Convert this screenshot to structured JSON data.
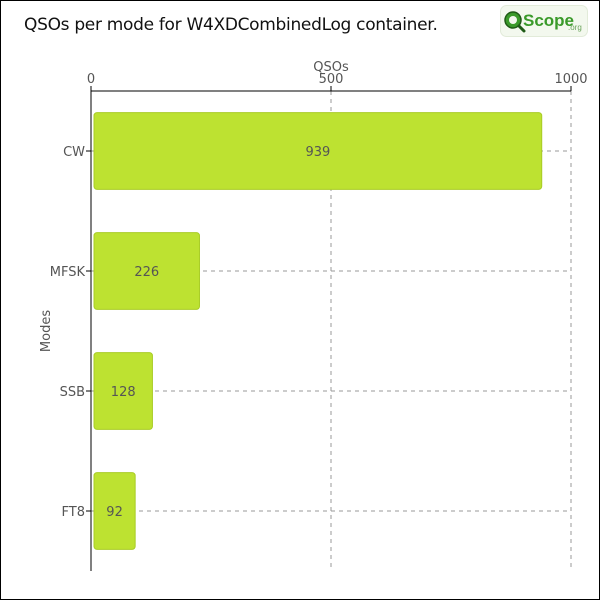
{
  "header": {
    "title": "QSOs per mode for W4XDCombinedLog container.",
    "logo_text": "Scope",
    "logo_suffix": ".org"
  },
  "colors": {
    "bar": "#bde231",
    "bar_edge": "#a9cc25",
    "grid": "#999999",
    "logo_green": "#3a9a2a"
  },
  "chart_data": {
    "type": "bar",
    "orientation": "horizontal",
    "title": "QSOs per mode for W4XDCombinedLog container.",
    "xlabel": "QSOs",
    "ylabel": "Modes",
    "x_axis_position": "top",
    "xlim": [
      0,
      1000
    ],
    "xticks": [
      0,
      500,
      1000
    ],
    "grid": true,
    "categories": [
      "CW",
      "MFSK",
      "SSB",
      "FT8"
    ],
    "values": [
      939,
      226,
      128,
      92
    ]
  }
}
